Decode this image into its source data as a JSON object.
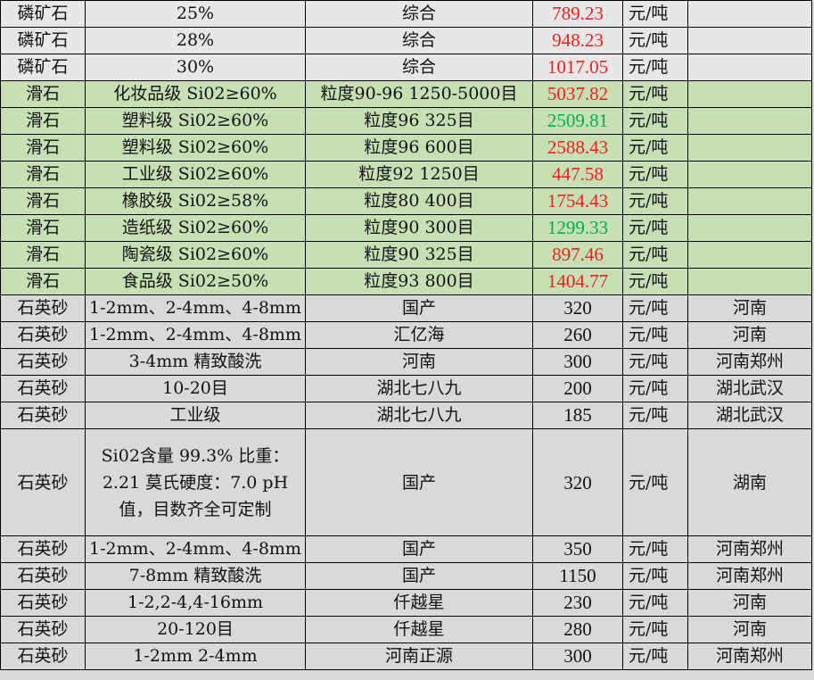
{
  "colors": {
    "phosphate_row_bg": "#e7e7e7",
    "talc_row_bg": "#c6e0b4",
    "quartz_row_bg": "#d9d9d9",
    "price_up": "#ff1a1a",
    "price_down": "#00b050"
  },
  "rows": [
    {
      "group": "phos",
      "name": "磷矿石",
      "spec": "25%",
      "origin": "综合",
      "price": "789.23",
      "price_color": "red",
      "unit": "元/吨",
      "region": ""
    },
    {
      "group": "phos",
      "name": "磷矿石",
      "spec": "28%",
      "origin": "综合",
      "price": "948.23",
      "price_color": "red",
      "unit": "元/吨",
      "region": ""
    },
    {
      "group": "phos",
      "name": "磷矿石",
      "spec": "30%",
      "origin": "综合",
      "price": "1017.05",
      "price_color": "red",
      "unit": "元/吨",
      "region": ""
    },
    {
      "group": "talc",
      "name": "滑石",
      "spec": "化妆品级 Si02≥60%",
      "origin": "粒度90-96 1250-5000目",
      "price": "5037.82",
      "price_color": "red",
      "unit": "元/吨",
      "region": ""
    },
    {
      "group": "talc",
      "name": "滑石",
      "spec": "塑料级 Si02≥60%",
      "origin": "粒度96 325目",
      "price": "2509.81",
      "price_color": "green",
      "unit": "元/吨",
      "region": ""
    },
    {
      "group": "talc",
      "name": "滑石",
      "spec": "塑料级 Si02≥60%",
      "origin": "粒度96 600目",
      "price": "2588.43",
      "price_color": "red",
      "unit": "元/吨",
      "region": ""
    },
    {
      "group": "talc",
      "name": "滑石",
      "spec": "工业级 Si02≥60%",
      "origin": "粒度92 1250目",
      "price": "447.58",
      "price_color": "red",
      "unit": "元/吨",
      "region": ""
    },
    {
      "group": "talc",
      "name": "滑石",
      "spec": "橡胶级 Si02≥58%",
      "origin": "粒度80 400目",
      "price": "1754.43",
      "price_color": "red",
      "unit": "元/吨",
      "region": ""
    },
    {
      "group": "talc",
      "name": "滑石",
      "spec": "造纸级 Si02≥60%",
      "origin": "粒度90 300目",
      "price": "1299.33",
      "price_color": "green",
      "unit": "元/吨",
      "region": ""
    },
    {
      "group": "talc",
      "name": "滑石",
      "spec": "陶瓷级 Si02≥60%",
      "origin": "粒度90 325目",
      "price": "897.46",
      "price_color": "red",
      "unit": "元/吨",
      "region": ""
    },
    {
      "group": "talc",
      "name": "滑石",
      "spec": "食品级 Si02≥50%",
      "origin": "粒度93 800目",
      "price": "1404.77",
      "price_color": "red",
      "unit": "元/吨",
      "region": ""
    },
    {
      "group": "quartz",
      "name": "石英砂",
      "spec": "1-2mm、2-4mm、4-8mm",
      "origin": "国产",
      "price": "320",
      "price_color": "",
      "unit": "元/吨",
      "region": "河南"
    },
    {
      "group": "quartz",
      "name": "石英砂",
      "spec": "1-2mm、2-4mm、4-8mm",
      "origin": "汇亿海",
      "price": "260",
      "price_color": "",
      "unit": "元/吨",
      "region": "河南"
    },
    {
      "group": "quartz",
      "name": "石英砂",
      "spec": "3-4mm 精致酸洗",
      "origin": "河南",
      "price": "300",
      "price_color": "",
      "unit": "元/吨",
      "region": "河南郑州"
    },
    {
      "group": "quartz",
      "name": "石英砂",
      "spec": "10-20目",
      "origin": "湖北七八九",
      "price": "200",
      "price_color": "",
      "unit": "元/吨",
      "region": "湖北武汉"
    },
    {
      "group": "quartz",
      "name": "石英砂",
      "spec": "工业级",
      "origin": "湖北七八九",
      "price": "185",
      "price_color": "",
      "unit": "元/吨",
      "region": "湖北武汉"
    },
    {
      "group": "quartz",
      "name": "石英砂",
      "spec": "Si02含量 99.3% 比重：2.21 莫氏硬度：7.0 pH值，目数齐全可定制",
      "origin": "国产",
      "price": "320",
      "price_color": "",
      "unit": "元/吨",
      "region": "湖南",
      "tall": true
    },
    {
      "group": "quartz",
      "name": "石英砂",
      "spec": "1-2mm、2-4mm、4-8mm",
      "origin": "国产",
      "price": "350",
      "price_color": "",
      "unit": "元/吨",
      "region": "河南郑州"
    },
    {
      "group": "quartz",
      "name": "石英砂",
      "spec": "7-8mm 精致酸洗",
      "origin": "国产",
      "price": "1150",
      "price_color": "",
      "unit": "元/吨",
      "region": "河南郑州"
    },
    {
      "group": "quartz",
      "name": "石英砂",
      "spec": "1-2,2-4,4-16mm",
      "origin": "仟越星",
      "price": "230",
      "price_color": "",
      "unit": "元/吨",
      "region": "河南"
    },
    {
      "group": "quartz",
      "name": "石英砂",
      "spec": "20-120目",
      "origin": "仟越星",
      "price": "280",
      "price_color": "",
      "unit": "元/吨",
      "region": "河南"
    },
    {
      "group": "quartz",
      "name": "石英砂",
      "spec": "1-2mm 2-4mm",
      "origin": "河南正源",
      "price": "300",
      "price_color": "",
      "unit": "元/吨",
      "region": "河南郑州"
    }
  ]
}
